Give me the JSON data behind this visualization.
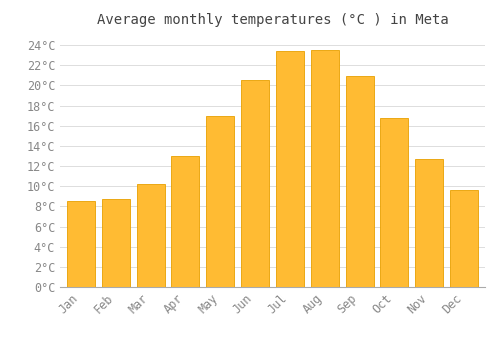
{
  "title": "Average monthly temperatures (°C ) in Meta",
  "months": [
    "Jan",
    "Feb",
    "Mar",
    "Apr",
    "May",
    "Jun",
    "Jul",
    "Aug",
    "Sep",
    "Oct",
    "Nov",
    "Dec"
  ],
  "values": [
    8.5,
    8.7,
    10.2,
    13.0,
    17.0,
    20.5,
    23.4,
    23.5,
    20.9,
    16.8,
    12.7,
    9.6
  ],
  "bar_color": "#FFBB33",
  "bar_edge_color": "#E8A000",
  "background_color": "#FFFFFF",
  "grid_color": "#DDDDDD",
  "title_color": "#444444",
  "tick_label_color": "#888888",
  "ylim": [
    0,
    25
  ],
  "ytick_step": 2,
  "title_fontsize": 10,
  "tick_fontsize": 8.5
}
